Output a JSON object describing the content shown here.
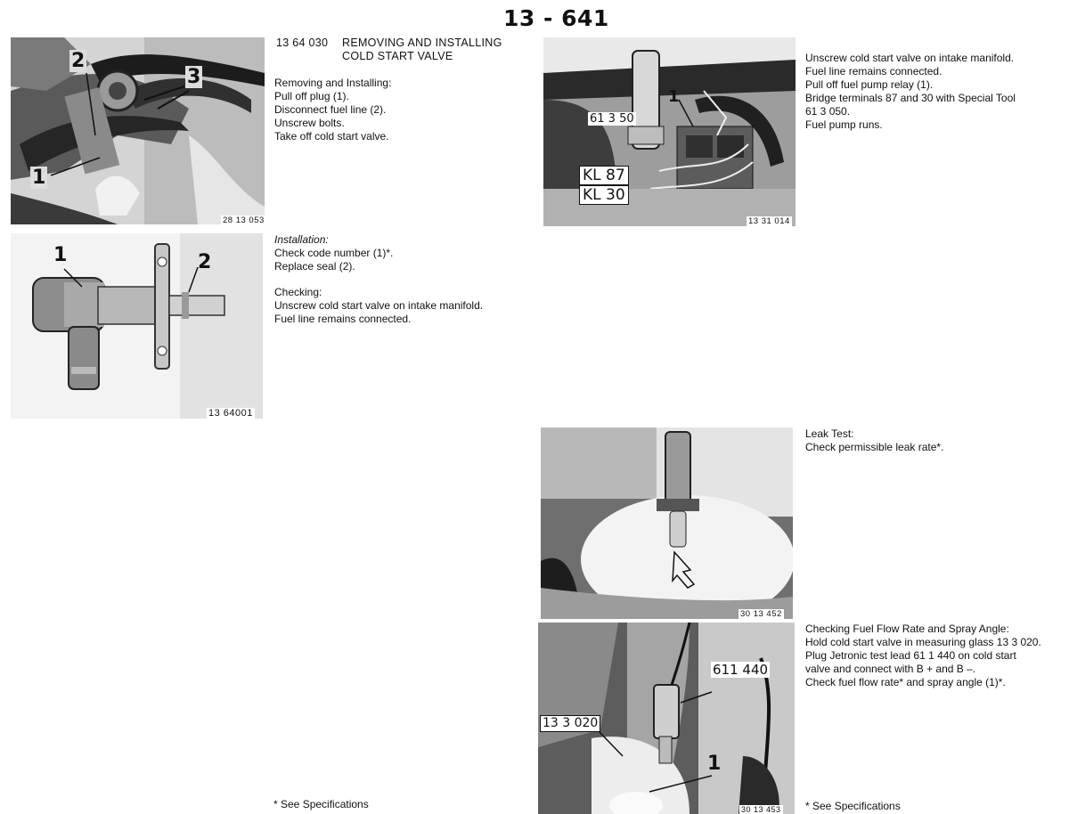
{
  "page_number": "13 - 641",
  "section": {
    "code": "13 64 030",
    "title_line1": "REMOVING AND INSTALLING",
    "title_line2": "COLD START VALVE"
  },
  "removing": {
    "heading": "Removing and Installing:",
    "lines": [
      "Pull off plug (1).",
      "Disconnect fuel line (2).",
      "Unscrew bolts.",
      "Take off cold start valve."
    ]
  },
  "installation": {
    "heading": "Installation:",
    "lines": [
      "Check code number (1)*.",
      "Replace seal (2)."
    ]
  },
  "checking": {
    "heading": "Checking:",
    "lines": [
      "Unscrew cold start valve on intake manifold.",
      "Fuel line remains connected."
    ]
  },
  "relay_step": {
    "lines": [
      "Unscrew cold start valve on intake manifold.",
      "Fuel line remains connected.",
      "Pull off fuel pump relay (1).",
      "Bridge terminals 87 and 30 with Special Tool",
      "61 3 050.",
      "Fuel pump runs."
    ]
  },
  "leak_test": {
    "heading": "Leak Test:",
    "lines": [
      "Check permissible leak rate*."
    ]
  },
  "flow_rate": {
    "heading": "Checking Fuel Flow Rate and Spray Angle:",
    "lines": [
      "Hold cold start valve in measuring glass 13 3 020.",
      "Plug Jetronic test lead 61 1 440 on cold start",
      "valve and connect with B + and B –.",
      "Check fuel flow rate* and spray angle (1)*."
    ]
  },
  "footnote_left": "* See Specifications",
  "footnote_right": "* See Specifications",
  "figures": {
    "fig1": {
      "code": "28 13 053",
      "labels": [
        "1",
        "2",
        "3"
      ]
    },
    "fig2": {
      "code": "13 64001",
      "labels": [
        "1",
        "2"
      ]
    },
    "fig3": {
      "code": "13 31 014",
      "labels": [
        "1"
      ],
      "tool": "61 3 50",
      "kl87": "KL 87",
      "kl30": "KL 30"
    },
    "fig4": {
      "code": "30 13 452"
    },
    "fig5": {
      "code": "30 13 453",
      "labels": [
        "1"
      ],
      "lead": "611 440",
      "glass": "13 3 020"
    }
  }
}
